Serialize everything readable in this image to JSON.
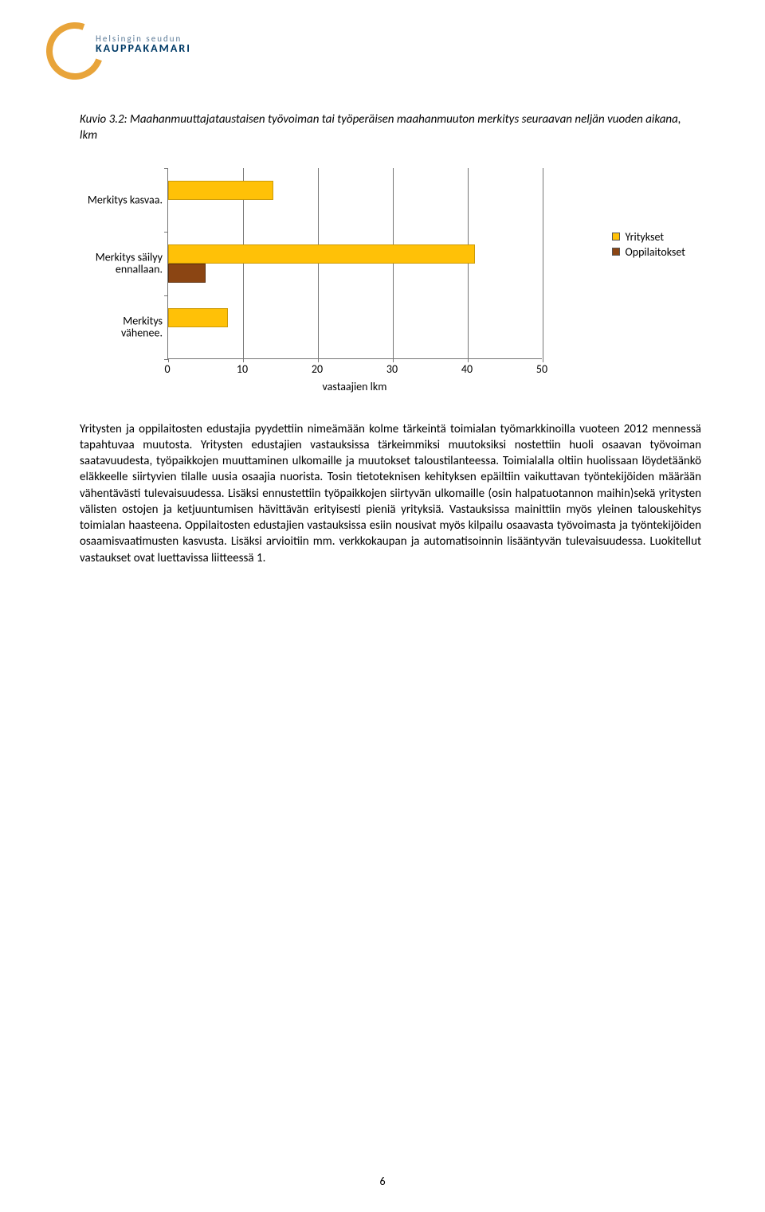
{
  "logo": {
    "line1": "Helsingin seudun",
    "line2": "KAUPPAKAMARI"
  },
  "title": "Kuvio 3.2: Maahanmuuttajataustaisen työvoiman tai työperäisen maahanmuuton merkitys seuraavan neljän vuoden aikana, lkm",
  "chart": {
    "type": "bar-horizontal-grouped",
    "xlim": [
      0,
      50
    ],
    "xtick_step": 10,
    "xaxis_title": "vastaajien lkm",
    "categories": [
      {
        "label": "Merkitys kasvaa.",
        "y": 14,
        "o": 0
      },
      {
        "label": "Merkitys säilyy ennallaan.",
        "y": 41,
        "o": 5
      },
      {
        "label": "Merkitys vähenee.",
        "y": 8,
        "o": 0
      }
    ],
    "series": [
      {
        "key": "y",
        "label": "Yritykset",
        "color": "#FFC107"
      },
      {
        "key": "o",
        "label": "Oppilaitokset",
        "color": "#8B4513"
      }
    ],
    "background_color": "#ffffff",
    "grid_color": "#777777",
    "label_fontsize": 14
  },
  "body": "Yritysten ja oppilaitosten edustajia pyydettiin nimeämään kolme tärkeintä toimialan työmarkkinoilla vuoteen 2012 mennessä tapahtuvaa muutosta. Yritysten edustajien vastauksissa tärkeimmiksi muutoksiksi nostettiin huoli osaavan työvoiman saatavuudesta, työpaikkojen muuttaminen ulkomaille ja muutokset taloustilanteessa. Toimialalla oltiin huolissaan löydetäänkö eläkkeelle siirtyvien tilalle uusia osaajia nuorista. Tosin tietoteknisen kehityksen epäiltiin vaikuttavan työntekijöiden määrään vähentävästi tulevaisuudessa. Lisäksi ennustettiin työpaikkojen siirtyvän ulkomaille (osin halpatuotannon maihin)sekä yritysten välisten ostojen ja ketjuuntumisen hävittävän erityisesti pieniä yrityksiä. Vastauksissa mainittiin myös yleinen talouskehitys toimialan haasteena. Oppilaitosten edustajien vastauksissa esiin nousivat myös kilpailu osaavasta työvoimasta ja työntekijöiden osaamisvaatimusten kasvusta. Lisäksi arvioitiin mm. verkkokaupan ja automatisoinnin lisääntyvän tulevaisuudessa. Luokitellut vastaukset ovat luettavissa liitteessä 1.",
  "page_number": "6"
}
